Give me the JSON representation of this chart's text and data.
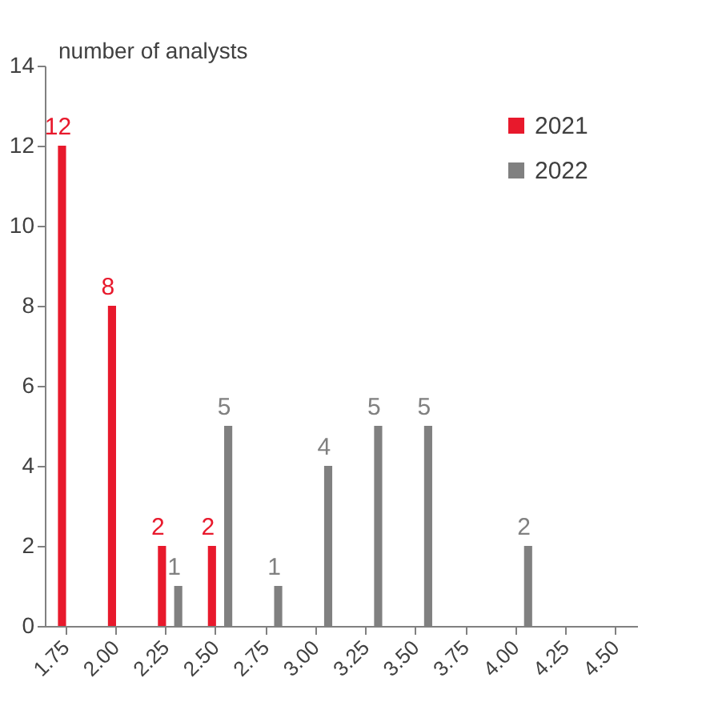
{
  "chart_data": {
    "type": "bar",
    "ylabel": "number of analysts",
    "categories": [
      "1.75",
      "2.00",
      "2.25",
      "2.50",
      "2.75",
      "3.00",
      "3.25",
      "3.50",
      "3.75",
      "4.00",
      "4.25",
      "4.50"
    ],
    "series": [
      {
        "name": "2021",
        "color": "#e8192c",
        "values": [
          12,
          8,
          2,
          2,
          null,
          null,
          null,
          null,
          null,
          null,
          null,
          null
        ]
      },
      {
        "name": "2022",
        "color": "#808080",
        "values": [
          null,
          null,
          1,
          5,
          1,
          4,
          5,
          5,
          null,
          2,
          null,
          null
        ]
      }
    ],
    "ylim": [
      0,
      14
    ],
    "yticks": [
      0,
      2,
      4,
      6,
      8,
      10,
      12,
      14
    ],
    "grid": false,
    "legend": "top right",
    "data_labels": true
  }
}
